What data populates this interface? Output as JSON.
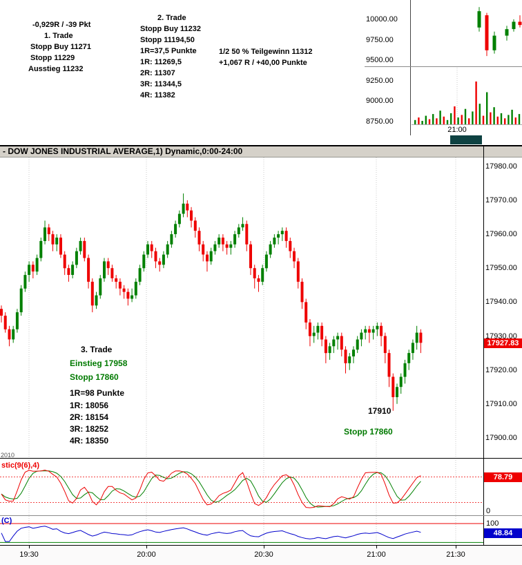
{
  "title_bar": {
    "text": "- DOW JONES INDUSTRIAL AVERAGE,1) Dynamic,0:00-24:00"
  },
  "top": {
    "trade1": {
      "result": "-0,929R / -39 Pkt",
      "title": "1. Trade",
      "line1": "Stopp Buy 11271",
      "line2": "Stopp 11229",
      "line3": "Ausstieg 11232"
    },
    "trade2": {
      "title": "2. Trade",
      "line1": "Stopp Buy 11232",
      "line2": "Stopp 11194,50",
      "line3": "1R=37,5 Punkte",
      "line4": "1R: 11269,5",
      "line5": "2R: 11307",
      "line6": "3R: 11344,5",
      "line7": "4R: 11382"
    },
    "teilgewinn": {
      "line1": "1/2 50 % Teilgewinn 11312",
      "line2": "+1,067 R / +40,00 Punkte"
    },
    "session_badge_color": "#0e4242"
  },
  "annotations": {
    "trade3_title": "3. Trade",
    "einstieg": "Einstieg 17958",
    "stopp": "Stopp 17860",
    "r1": "1R=98 Punkte",
    "r2": "1R: 18056",
    "r3": "2R: 18154",
    "r4": "3R: 18252",
    "r5": "4R: 18350",
    "low_label": "17910",
    "stopp_label": "Stopp 17860",
    "watermark": "2010",
    "green_hex": "#007a00"
  },
  "chart_data": [
    {
      "id": "main",
      "type": "candlestick",
      "title": "- DOW JONES INDUSTRIAL AVERAGE,1) Dynamic,0:00-24:00",
      "ylim": [
        17894.1,
        17982.6
      ],
      "y_ticks": [
        "17980.00",
        "17970.00",
        "17960.00",
        "17950.00",
        "17940.00",
        "17930.00",
        "17920.00",
        "17910.00",
        "17900.00"
      ],
      "x_ticks": [
        "19:30",
        "20:00",
        "20:30",
        "21:00",
        "21:30"
      ],
      "last_price": "17927.83",
      "up_color": "#008000",
      "down_color": "#ee0000",
      "grid": "vertical-dotted",
      "candles": [
        [
          17938,
          17939,
          17934,
          17936
        ],
        [
          17936,
          17937,
          17931,
          17932
        ],
        [
          17932,
          17933,
          17927,
          17929
        ],
        [
          17929,
          17933,
          17928,
          17932
        ],
        [
          17932,
          17938,
          17931,
          17937
        ],
        [
          17937,
          17945,
          17936,
          17944
        ],
        [
          17944,
          17949,
          17943,
          17948
        ],
        [
          17948,
          17952,
          17946,
          17951
        ],
        [
          17951,
          17952,
          17947,
          17949
        ],
        [
          17949,
          17954,
          17948,
          17953
        ],
        [
          17953,
          17959,
          17952,
          17958
        ],
        [
          17958,
          17964,
          17957,
          17962
        ],
        [
          17962,
          17963,
          17958,
          17960
        ],
        [
          17960,
          17961,
          17955,
          17957
        ],
        [
          17957,
          17960,
          17955,
          17959
        ],
        [
          17959,
          17960,
          17953,
          17954
        ],
        [
          17954,
          17955,
          17948,
          17950
        ],
        [
          17950,
          17951,
          17946,
          17948
        ],
        [
          17948,
          17952,
          17947,
          17951
        ],
        [
          17951,
          17956,
          17950,
          17955
        ],
        [
          17955,
          17959,
          17954,
          17958
        ],
        [
          17958,
          17959,
          17952,
          17953
        ],
        [
          17953,
          17954,
          17944,
          17946
        ],
        [
          17946,
          17947,
          17937,
          17939
        ],
        [
          17939,
          17943,
          17938,
          17942
        ],
        [
          17942,
          17948,
          17941,
          17947
        ],
        [
          17947,
          17953,
          17946,
          17952
        ],
        [
          17952,
          17953,
          17948,
          17950
        ],
        [
          17950,
          17951,
          17946,
          17947
        ],
        [
          17947,
          17948,
          17944,
          17946
        ],
        [
          17946,
          17947,
          17942,
          17944
        ],
        [
          17944,
          17945,
          17941,
          17943
        ],
        [
          17943,
          17944,
          17939,
          17941
        ],
        [
          17941,
          17944,
          17940,
          17942
        ],
        [
          17942,
          17947,
          17941,
          17946
        ],
        [
          17946,
          17951,
          17945,
          17950
        ],
        [
          17950,
          17955,
          17949,
          17954
        ],
        [
          17954,
          17958,
          17953,
          17957
        ],
        [
          17957,
          17958,
          17953,
          17955
        ],
        [
          17955,
          17956,
          17950,
          17952
        ],
        [
          17952,
          17953,
          17949,
          17951
        ],
        [
          17951,
          17955,
          17950,
          17954
        ],
        [
          17954,
          17958,
          17953,
          17957
        ],
        [
          17957,
          17961,
          17956,
          17960
        ],
        [
          17960,
          17964,
          17959,
          17963
        ],
        [
          17963,
          17967,
          17962,
          17966
        ],
        [
          17966,
          17972,
          17965,
          17969
        ],
        [
          17969,
          17970,
          17965,
          17967
        ],
        [
          17967,
          17968,
          17962,
          17964
        ],
        [
          17964,
          17965,
          17959,
          17961
        ],
        [
          17961,
          17962,
          17955,
          17957
        ],
        [
          17957,
          17958,
          17952,
          17954
        ],
        [
          17954,
          17955,
          17949,
          17952
        ],
        [
          17952,
          17956,
          17951,
          17955
        ],
        [
          17955,
          17958,
          17954,
          17957
        ],
        [
          17957,
          17960,
          17956,
          17959
        ],
        [
          17959,
          17960,
          17955,
          17957
        ],
        [
          17957,
          17958,
          17954,
          17956
        ],
        [
          17956,
          17958,
          17954,
          17957
        ],
        [
          17957,
          17961,
          17956,
          17960
        ],
        [
          17960,
          17963,
          17959,
          17962
        ],
        [
          17962,
          17965,
          17961,
          17963
        ],
        [
          17963,
          17964,
          17955,
          17957
        ],
        [
          17957,
          17958,
          17948,
          17950
        ],
        [
          17950,
          17951,
          17944,
          17947
        ],
        [
          17947,
          17948,
          17943,
          17946
        ],
        [
          17946,
          17951,
          17945,
          17950
        ],
        [
          17950,
          17955,
          17949,
          17954
        ],
        [
          17954,
          17958,
          17953,
          17957
        ],
        [
          17957,
          17960,
          17956,
          17959
        ],
        [
          17959,
          17961,
          17957,
          17960
        ],
        [
          17960,
          17962,
          17958,
          17961
        ],
        [
          17961,
          17962,
          17956,
          17958
        ],
        [
          17958,
          17959,
          17953,
          17955
        ],
        [
          17955,
          17956,
          17950,
          17952
        ],
        [
          17952,
          17953,
          17944,
          17946
        ],
        [
          17946,
          17947,
          17938,
          17940
        ],
        [
          17940,
          17941,
          17932,
          17934
        ],
        [
          17934,
          17935,
          17927,
          17930
        ],
        [
          17930,
          17933,
          17928,
          17931
        ],
        [
          17931,
          17934,
          17929,
          17933
        ],
        [
          17933,
          17934,
          17927,
          17929
        ],
        [
          17929,
          17930,
          17922,
          17925
        ],
        [
          17925,
          17928,
          17923,
          17927
        ],
        [
          17927,
          17930,
          17925,
          17929
        ],
        [
          17929,
          17931,
          17926,
          17930
        ],
        [
          17930,
          17931,
          17924,
          17926
        ],
        [
          17926,
          17927,
          17919,
          17922
        ],
        [
          17922,
          17925,
          17920,
          17924
        ],
        [
          17924,
          17927,
          17922,
          17926
        ],
        [
          17926,
          17930,
          17925,
          17929
        ],
        [
          17929,
          17932,
          17927,
          17931
        ],
        [
          17931,
          17933,
          17929,
          17932
        ],
        [
          17932,
          17933,
          17928,
          17931
        ],
        [
          17931,
          17933,
          17929,
          17932
        ],
        [
          17932,
          17934,
          17930,
          17933
        ],
        [
          17933,
          17934,
          17927,
          17930
        ],
        [
          17930,
          17931,
          17922,
          17925
        ],
        [
          17925,
          17926,
          17915,
          17918
        ],
        [
          17918,
          17919,
          17908,
          17912
        ],
        [
          17912,
          17916,
          17910,
          17915
        ],
        [
          17915,
          17919,
          17913,
          17918
        ],
        [
          17918,
          17923,
          17916,
          17922
        ],
        [
          17922,
          17926,
          17920,
          17925
        ],
        [
          17925,
          17929,
          17923,
          17928
        ],
        [
          17928,
          17933,
          17926,
          17931
        ],
        [
          17931,
          17932,
          17925,
          17928
        ]
      ]
    },
    {
      "id": "stoch",
      "type": "line",
      "label": "stic(9(6),4)",
      "ylim": [
        0,
        100
      ],
      "levels": [
        80,
        20
      ],
      "bottom_label": "0",
      "last_value": "78.79",
      "k_color": "#ee0000",
      "d_color": "#008000"
    },
    {
      "id": "momentum",
      "type": "line",
      "label": "(C)",
      "ylim": [
        0,
        100
      ],
      "top_label": "100",
      "last_value": "48.84",
      "line_color": "#0000cc",
      "upper_line": {
        "value": 100,
        "color": "#ee0000"
      },
      "lower_line": {
        "value": 0,
        "color": "#008000"
      }
    },
    {
      "id": "mini",
      "type": "candlestick",
      "y_ticks": [
        "10000.00",
        "9750.00",
        "9500.00",
        "9250.00",
        "9000.00",
        "8750.00"
      ],
      "x_tick": "21:00",
      "up_color": "#008000",
      "down_color": "#ee0000",
      "candles": [
        [
          9900,
          10150,
          9850,
          10100
        ],
        [
          10050,
          10080,
          9550,
          9620
        ],
        [
          9620,
          9850,
          9580,
          9800
        ],
        [
          9800,
          9920,
          9740,
          9880
        ],
        [
          9880,
          10000,
          9850,
          9970
        ],
        [
          9970,
          10050,
          9900,
          9930
        ]
      ],
      "volume": [
        [
          10,
          "g"
        ],
        [
          16,
          "r"
        ],
        [
          8,
          "g"
        ],
        [
          20,
          "g"
        ],
        [
          12,
          "r"
        ],
        [
          24,
          "g"
        ],
        [
          14,
          "r"
        ],
        [
          32,
          "g"
        ],
        [
          18,
          "r"
        ],
        [
          10,
          "g"
        ],
        [
          26,
          "g"
        ],
        [
          42,
          "r"
        ],
        [
          16,
          "g"
        ],
        [
          22,
          "r"
        ],
        [
          36,
          "g"
        ],
        [
          14,
          "r"
        ],
        [
          30,
          "g"
        ],
        [
          100,
          "r"
        ],
        [
          48,
          "g"
        ],
        [
          20,
          "r"
        ],
        [
          75,
          "g"
        ],
        [
          28,
          "r"
        ],
        [
          40,
          "g"
        ],
        [
          18,
          "r"
        ],
        [
          26,
          "g"
        ],
        [
          14,
          "r"
        ],
        [
          22,
          "g"
        ],
        [
          34,
          "g"
        ],
        [
          16,
          "r"
        ],
        [
          24,
          "g"
        ]
      ]
    }
  ]
}
